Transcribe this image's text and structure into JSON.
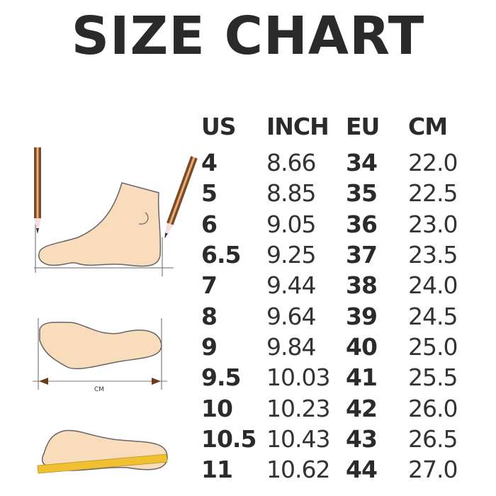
{
  "title": "SIZE CHART",
  "columns": [
    "US",
    "INCH",
    "EU",
    "CM"
  ],
  "rows": [
    [
      "4",
      "8.66",
      "34",
      "22.0"
    ],
    [
      "5",
      "8.85",
      "35",
      "22.5"
    ],
    [
      "6",
      "9.05",
      "36",
      "23.0"
    ],
    [
      "6.5",
      "9.25",
      "37",
      "23.5"
    ],
    [
      "7",
      "9.44",
      "38",
      "24.0"
    ],
    [
      "8",
      "9.64",
      "39",
      "24.5"
    ],
    [
      "9",
      "9.84",
      "40",
      "25.0"
    ],
    [
      "9.5",
      "10.03",
      "41",
      "25.5"
    ],
    [
      "10",
      "10.23",
      "42",
      "26.0"
    ],
    [
      "10.5",
      "10.43",
      "43",
      "26.5"
    ],
    [
      "11",
      "10.62",
      "44",
      "27.0"
    ]
  ],
  "illustration": {
    "measure_label": "CM",
    "foot_color": "#f8dcbc",
    "pencil_color": "#7a4a2a",
    "ruler_color": "#f0c030"
  }
}
